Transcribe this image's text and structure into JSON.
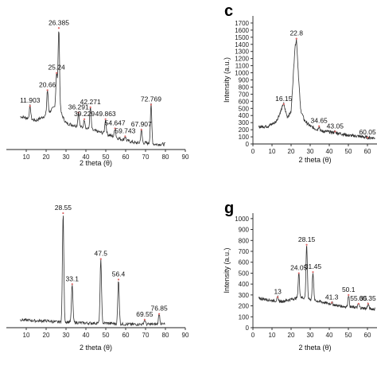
{
  "chart_data": [
    {
      "type": "line",
      "letter": "",
      "xlabel": "2 theta (θ)",
      "ylabel": "",
      "xlim": [
        0,
        90
      ],
      "xticks": [
        10,
        20,
        30,
        40,
        50,
        60,
        70,
        80,
        90
      ],
      "ylim": [
        0,
        100
      ],
      "yticks": [],
      "peaks": [
        {
          "x": 11.903,
          "y": 33,
          "label": "11.903"
        },
        {
          "x": 20.66,
          "y": 45,
          "label": "20.66"
        },
        {
          "x": 25.24,
          "y": 58,
          "label": "25.24"
        },
        {
          "x": 26.385,
          "y": 92,
          "label": "26.385"
        },
        {
          "x": 36.291,
          "y": 28,
          "label": "36.291"
        },
        {
          "x": 39.229,
          "y": 23,
          "label": "39.229"
        },
        {
          "x": 42.271,
          "y": 32,
          "label": "42.271"
        },
        {
          "x": 49.863,
          "y": 23,
          "label": "49.863"
        },
        {
          "x": 54.647,
          "y": 16,
          "label": "54.647"
        },
        {
          "x": 59.743,
          "y": 10,
          "label": "59.743"
        },
        {
          "x": 67.907,
          "y": 15,
          "label": "67.907"
        },
        {
          "x": 72.769,
          "y": 34,
          "label": "72.769"
        }
      ],
      "baseline": [
        [
          7,
          25
        ],
        [
          10,
          24
        ],
        [
          15,
          22
        ],
        [
          20,
          26
        ],
        [
          24,
          32
        ],
        [
          26,
          36
        ],
        [
          28,
          26
        ],
        [
          30,
          20
        ],
        [
          35,
          18
        ],
        [
          40,
          16
        ],
        [
          45,
          14
        ],
        [
          50,
          12
        ],
        [
          55,
          9
        ],
        [
          60,
          7
        ],
        [
          65,
          5
        ],
        [
          70,
          5
        ],
        [
          75,
          4
        ],
        [
          80,
          4
        ]
      ]
    },
    {
      "type": "line",
      "letter": "c",
      "xlabel": "2 theta (θ)",
      "ylabel": "Intensity (a.u.)",
      "xlim": [
        0,
        65
      ],
      "xticks": [
        0,
        10,
        20,
        30,
        40,
        50,
        60
      ],
      "ylim": [
        0,
        1800
      ],
      "yticks": [
        0,
        100,
        200,
        300,
        400,
        500,
        600,
        700,
        800,
        900,
        1000,
        1100,
        1200,
        1300,
        1400,
        1500,
        1600,
        1700
      ],
      "peaks": [
        {
          "x": 16.15,
          "y": 560,
          "label": "16.15"
        },
        {
          "x": 22.8,
          "y": 1480,
          "label": "22.8"
        },
        {
          "x": 34.65,
          "y": 250,
          "label": "34.65"
        },
        {
          "x": 43.05,
          "y": 175,
          "label": "43.05"
        },
        {
          "x": 60.05,
          "y": 90,
          "label": "60.05"
        }
      ],
      "baseline": [
        [
          3,
          240
        ],
        [
          8,
          250
        ],
        [
          12,
          310
        ],
        [
          14,
          420
        ],
        [
          16,
          560
        ],
        [
          18,
          380
        ],
        [
          20,
          450
        ],
        [
          22,
          1350
        ],
        [
          22.8,
          1480
        ],
        [
          24,
          900
        ],
        [
          25,
          480
        ],
        [
          27,
          330
        ],
        [
          30,
          250
        ],
        [
          33,
          210
        ],
        [
          36,
          180
        ],
        [
          40,
          170
        ],
        [
          45,
          150
        ],
        [
          50,
          120
        ],
        [
          55,
          110
        ],
        [
          60,
          90
        ],
        [
          64,
          85
        ]
      ]
    },
    {
      "type": "line",
      "letter": "",
      "xlabel": "2 theta (θ)",
      "ylabel": "",
      "xlim": [
        0,
        90
      ],
      "xticks": [
        10,
        20,
        30,
        40,
        50,
        60,
        70,
        80,
        90
      ],
      "ylim": [
        0,
        100
      ],
      "yticks": [],
      "peaks": [
        {
          "x": 28.55,
          "y": 100,
          "label": "28.55"
        },
        {
          "x": 33.1,
          "y": 38,
          "label": "33.1"
        },
        {
          "x": 47.5,
          "y": 60,
          "label": "47.5"
        },
        {
          "x": 56.4,
          "y": 42,
          "label": "56.4"
        },
        {
          "x": 69.55,
          "y": 7,
          "label": "69.55"
        },
        {
          "x": 76.85,
          "y": 12,
          "label": "76.85"
        }
      ],
      "baseline": [
        [
          7,
          7
        ],
        [
          15,
          6
        ],
        [
          20,
          6
        ],
        [
          25,
          5
        ],
        [
          30,
          5
        ],
        [
          40,
          4
        ],
        [
          50,
          4
        ],
        [
          60,
          3
        ],
        [
          70,
          3
        ],
        [
          80,
          3
        ]
      ]
    },
    {
      "type": "line",
      "letter": "g",
      "xlabel": "2 theta (θ)",
      "ylabel": "Intensity (a.u.)",
      "xlim": [
        0,
        65
      ],
      "xticks": [
        0,
        10,
        20,
        30,
        40,
        50,
        60
      ],
      "ylim": [
        0,
        1050
      ],
      "yticks": [
        0,
        100,
        200,
        300,
        400,
        500,
        600,
        700,
        800,
        900,
        1000
      ],
      "peaks": [
        {
          "x": 13,
          "y": 280,
          "label": "13"
        },
        {
          "x": 24.05,
          "y": 500,
          "label": "24.05"
        },
        {
          "x": 28.15,
          "y": 760,
          "label": "28.15"
        },
        {
          "x": 31.45,
          "y": 510,
          "label": "31.45"
        },
        {
          "x": 41.3,
          "y": 230,
          "label": "41.3"
        },
        {
          "x": 50.1,
          "y": 300,
          "label": "50.1"
        },
        {
          "x": 55.35,
          "y": 220,
          "label": "55.35"
        },
        {
          "x": 60.35,
          "y": 220,
          "label": "60.35"
        }
      ],
      "baseline": [
        [
          3,
          270
        ],
        [
          10,
          250
        ],
        [
          15,
          240
        ],
        [
          20,
          260
        ],
        [
          25,
          280
        ],
        [
          30,
          260
        ],
        [
          35,
          240
        ],
        [
          40,
          220
        ],
        [
          45,
          200
        ],
        [
          50,
          190
        ],
        [
          55,
          185
        ],
        [
          60,
          175
        ],
        [
          64,
          170
        ]
      ]
    }
  ]
}
